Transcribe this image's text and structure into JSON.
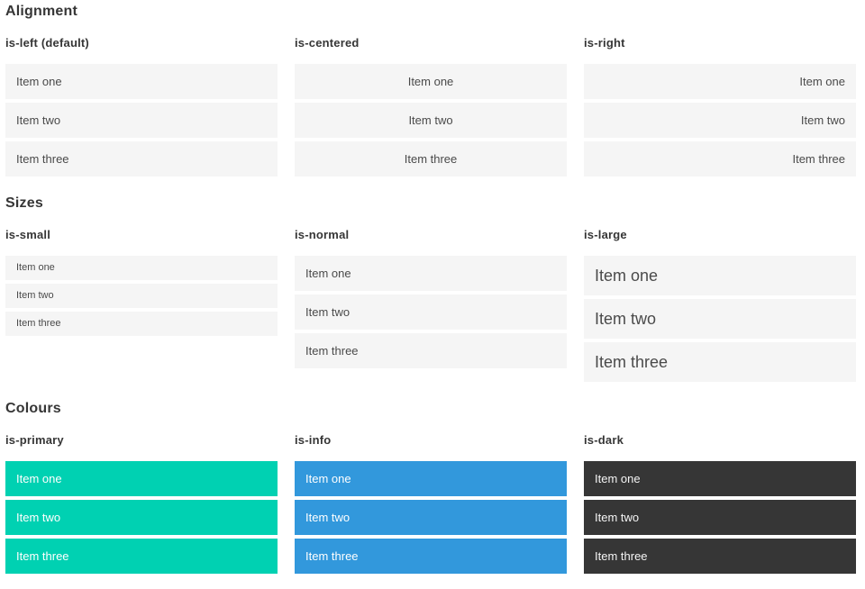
{
  "theme": {
    "colors": {
      "primary": "#00d1b2",
      "info": "#3298dc",
      "dark": "#363636",
      "item-bg": "#f5f5f5",
      "item-text": "#4a4a4a",
      "heading-text": "#363636"
    }
  },
  "sections": [
    {
      "title": "Alignment",
      "columns": [
        {
          "label": "is-left (default)",
          "items": [
            "Item one",
            "Item two",
            "Item three"
          ]
        },
        {
          "label": "is-centered",
          "items": [
            "Item one",
            "Item two",
            "Item three"
          ]
        },
        {
          "label": "is-right",
          "items": [
            "Item one",
            "Item two",
            "Item three"
          ]
        }
      ]
    },
    {
      "title": "Sizes",
      "columns": [
        {
          "label": "is-small",
          "items": [
            "Item one",
            "Item two",
            "Item three"
          ]
        },
        {
          "label": "is-normal",
          "items": [
            "Item one",
            "Item two",
            "Item three"
          ]
        },
        {
          "label": "is-large",
          "items": [
            "Item one",
            "Item two",
            "Item three"
          ]
        }
      ]
    },
    {
      "title": "Colours",
      "columns": [
        {
          "label": "is-primary",
          "items": [
            "Item one",
            "Item two",
            "Item three"
          ]
        },
        {
          "label": "is-info",
          "items": [
            "Item one",
            "Item two",
            "Item three"
          ]
        },
        {
          "label": "is-dark",
          "items": [
            "Item one",
            "Item two",
            "Item three"
          ]
        }
      ]
    }
  ]
}
